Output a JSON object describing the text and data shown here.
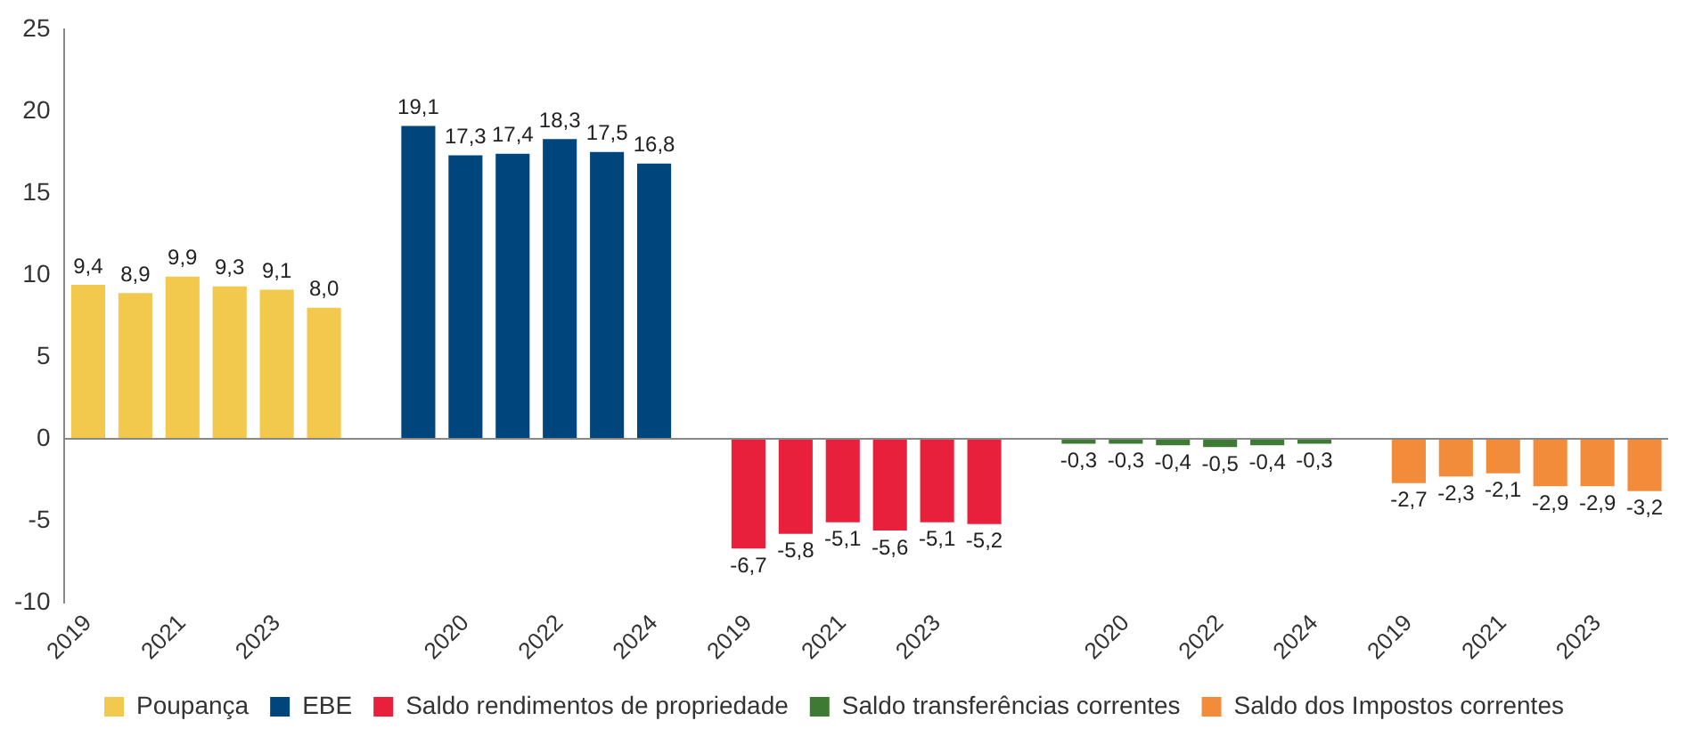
{
  "chart_data": {
    "type": "bar",
    "categories": [
      "2019",
      null,
      "2021",
      null,
      "2023",
      null,
      null,
      null,
      "2020",
      null,
      "2022",
      null,
      "2024",
      null,
      "2019",
      null,
      "2021",
      null,
      "2023",
      null,
      null,
      null,
      "2020",
      null,
      "2022",
      null,
      "2024",
      null,
      "2019",
      null,
      "2021",
      null,
      "2023",
      null
    ],
    "series": [
      {
        "name": "Poupança",
        "color": "#f2c94c",
        "value_labels": [
          "9,4",
          "8,9",
          "9,9",
          "9,3",
          "9,1",
          "8,0",
          null,
          null,
          null,
          null,
          null,
          null,
          null,
          null,
          null,
          null,
          null,
          null,
          null,
          null,
          null,
          null,
          null,
          null,
          null,
          null,
          null,
          null,
          null,
          null,
          null,
          null,
          null,
          null
        ],
        "values": [
          9.4,
          8.9,
          9.9,
          9.3,
          9.1,
          8.0,
          null,
          null,
          null,
          null,
          null,
          null,
          null,
          null,
          null,
          null,
          null,
          null,
          null,
          null,
          null,
          null,
          null,
          null,
          null,
          null,
          null,
          null,
          null,
          null,
          null,
          null,
          null,
          null
        ]
      },
      {
        "name": "EBE",
        "color": "#00457c",
        "value_labels": [
          null,
          null,
          null,
          null,
          null,
          null,
          null,
          "19,1",
          "17,3",
          "17,4",
          "18,3",
          "17,5",
          "16,8",
          null,
          null,
          null,
          null,
          null,
          null,
          null,
          null,
          null,
          null,
          null,
          null,
          null,
          null,
          null,
          null,
          null,
          null,
          null,
          null,
          null
        ],
        "values": [
          null,
          null,
          null,
          null,
          null,
          null,
          null,
          19.1,
          17.3,
          17.4,
          18.3,
          17.5,
          16.8,
          null,
          null,
          null,
          null,
          null,
          null,
          null,
          null,
          null,
          null,
          null,
          null,
          null,
          null,
          null,
          null,
          null,
          null,
          null,
          null,
          null
        ]
      },
      {
        "name": "Saldo rendimentos de propriedade",
        "color": "#e8203c",
        "value_labels": [
          null,
          null,
          null,
          null,
          null,
          null,
          null,
          null,
          null,
          null,
          null,
          null,
          null,
          null,
          "-6,7",
          "-5,8",
          "-5,1",
          "-5,6",
          "-5,1",
          "-5,2",
          null,
          null,
          null,
          null,
          null,
          null,
          null,
          null,
          null,
          null,
          null,
          null,
          null,
          null
        ],
        "values": [
          null,
          null,
          null,
          null,
          null,
          null,
          null,
          null,
          null,
          null,
          null,
          null,
          null,
          null,
          -6.7,
          -5.8,
          -5.1,
          -5.6,
          -5.1,
          -5.2,
          null,
          null,
          null,
          null,
          null,
          null,
          null,
          null,
          null,
          null,
          null,
          null,
          null,
          null
        ]
      },
      {
        "name": "Saldo transferências correntes",
        "color": "#3f7a35",
        "value_labels": [
          null,
          null,
          null,
          null,
          null,
          null,
          null,
          null,
          null,
          null,
          null,
          null,
          null,
          null,
          null,
          null,
          null,
          null,
          null,
          null,
          null,
          "-0,3",
          "-0,3",
          "-0,4",
          "-0,5",
          "-0,4",
          "-0,3",
          null,
          null,
          null,
          null,
          null,
          null,
          null
        ],
        "values": [
          null,
          null,
          null,
          null,
          null,
          null,
          null,
          null,
          null,
          null,
          null,
          null,
          null,
          null,
          null,
          null,
          null,
          null,
          null,
          null,
          null,
          -0.3,
          -0.3,
          -0.4,
          -0.5,
          -0.4,
          -0.3,
          null,
          null,
          null,
          null,
          null,
          null,
          null
        ]
      },
      {
        "name": "Saldo dos Impostos correntes",
        "color": "#f28c3a",
        "value_labels": [
          null,
          null,
          null,
          null,
          null,
          null,
          null,
          null,
          null,
          null,
          null,
          null,
          null,
          null,
          null,
          null,
          null,
          null,
          null,
          null,
          null,
          null,
          null,
          null,
          null,
          null,
          null,
          null,
          "-2,7",
          "-2,3",
          "-2,1",
          "-2,9",
          "-2,9",
          "-3,2"
        ],
        "values": [
          null,
          null,
          null,
          null,
          null,
          null,
          null,
          null,
          null,
          null,
          null,
          null,
          null,
          null,
          null,
          null,
          null,
          null,
          null,
          null,
          null,
          null,
          null,
          null,
          null,
          null,
          null,
          null,
          -2.7,
          -2.3,
          -2.1,
          -2.9,
          -2.9,
          -3.2
        ]
      }
    ],
    "ylim": [
      -10,
      25
    ],
    "yticks": [
      -10,
      -5,
      0,
      5,
      10,
      15,
      20,
      25
    ],
    "legend": "bottom"
  }
}
